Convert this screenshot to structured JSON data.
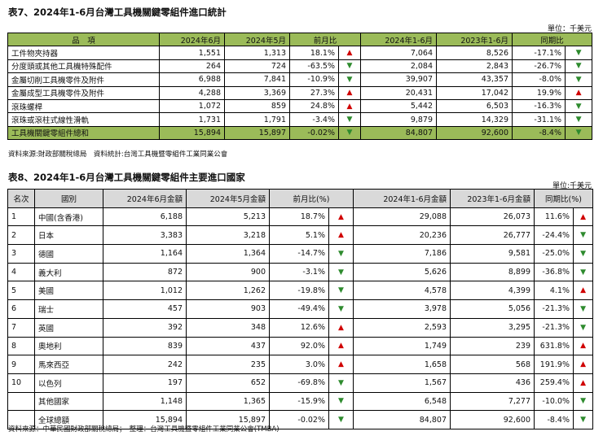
{
  "table7": {
    "caption": "表7、2024年1-6月台灣工具機關鍵零組件進口統計",
    "unit": "單位：千美元",
    "headers": [
      "品　項",
      "2024年6月",
      "2024年5月",
      "前月比",
      "2024年1-6月",
      "2023年1-6月",
      "同期比"
    ],
    "rows": [
      {
        "name": "工件物夾持器",
        "jun": "1,551",
        "may": "1,313",
        "mom": "18.1%",
        "mom_dir": "up",
        "h1_2024": "7,064",
        "h1_2023": "8,526",
        "yoy": "-17.1%",
        "yoy_dir": "down"
      },
      {
        "name": "分度頭或其他工具機特殊配件",
        "jun": "264",
        "may": "724",
        "mom": "-63.5%",
        "mom_dir": "down",
        "h1_2024": "2,084",
        "h1_2023": "2,843",
        "yoy": "-26.7%",
        "yoy_dir": "down"
      },
      {
        "name": "金屬切削工具機零件及附件",
        "jun": "6,988",
        "may": "7,841",
        "mom": "-10.9%",
        "mom_dir": "down",
        "h1_2024": "39,907",
        "h1_2023": "43,357",
        "yoy": "-8.0%",
        "yoy_dir": "down"
      },
      {
        "name": "金屬成型工具機零件及附件",
        "jun": "4,288",
        "may": "3,369",
        "mom": "27.3%",
        "mom_dir": "up",
        "h1_2024": "20,431",
        "h1_2023": "17,042",
        "yoy": "19.9%",
        "yoy_dir": "up"
      },
      {
        "name": "滾珠螺桿",
        "jun": "1,072",
        "may": "859",
        "mom": "24.8%",
        "mom_dir": "up",
        "h1_2024": "5,442",
        "h1_2023": "6,503",
        "yoy": "-16.3%",
        "yoy_dir": "down"
      },
      {
        "name": "滾珠或滾柱式線性滑軌",
        "jun": "1,731",
        "may": "1,791",
        "mom": "-3.4%",
        "mom_dir": "down",
        "h1_2024": "9,879",
        "h1_2023": "14,329",
        "yoy": "-31.1%",
        "yoy_dir": "down"
      }
    ],
    "total": {
      "name": "工具機關鍵零組件總和",
      "jun": "15,894",
      "may": "15,897",
      "mom": "-0.02%",
      "mom_dir": "down",
      "h1_2024": "84,807",
      "h1_2023": "92,600",
      "yoy": "-8.4%",
      "yoy_dir": "down"
    },
    "source": "資料來源:財政部關稅總局　資料統計:台灣工具機暨零組件工業同業公會"
  },
  "table8": {
    "caption": "表8、2024年1-6月台灣工具機關鍵零組件主要進口國家",
    "unit": "單位:千美元",
    "headers": [
      "名次",
      "國別",
      "2024年6月金額",
      "2024年5月金額",
      "前月比(%)",
      "2024年1-6月金額",
      "2023年1-6月金額",
      "同期比(%)"
    ],
    "rows": [
      {
        "rank": "1",
        "country": "中國(含香港)",
        "jun": "6,188",
        "may": "5,213",
        "mom": "18.7%",
        "mom_dir": "up",
        "h1_2024": "29,088",
        "h1_2023": "26,073",
        "yoy": "11.6%",
        "yoy_dir": "up"
      },
      {
        "rank": "2",
        "country": "日本",
        "jun": "3,383",
        "may": "3,218",
        "mom": "5.1%",
        "mom_dir": "up",
        "h1_2024": "20,236",
        "h1_2023": "26,777",
        "yoy": "-24.4%",
        "yoy_dir": "down"
      },
      {
        "rank": "3",
        "country": "德國",
        "jun": "1,164",
        "may": "1,364",
        "mom": "-14.7%",
        "mom_dir": "down",
        "h1_2024": "7,186",
        "h1_2023": "9,581",
        "yoy": "-25.0%",
        "yoy_dir": "down"
      },
      {
        "rank": "4",
        "country": "義大利",
        "jun": "872",
        "may": "900",
        "mom": "-3.1%",
        "mom_dir": "down",
        "h1_2024": "5,626",
        "h1_2023": "8,899",
        "yoy": "-36.8%",
        "yoy_dir": "down"
      },
      {
        "rank": "5",
        "country": "美國",
        "jun": "1,012",
        "may": "1,262",
        "mom": "-19.8%",
        "mom_dir": "down",
        "h1_2024": "4,578",
        "h1_2023": "4,399",
        "yoy": "4.1%",
        "yoy_dir": "up"
      },
      {
        "rank": "6",
        "country": "瑞士",
        "jun": "457",
        "may": "903",
        "mom": "-49.4%",
        "mom_dir": "down",
        "h1_2024": "3,978",
        "h1_2023": "5,056",
        "yoy": "-21.3%",
        "yoy_dir": "down"
      },
      {
        "rank": "7",
        "country": "英國",
        "jun": "392",
        "may": "348",
        "mom": "12.6%",
        "mom_dir": "up",
        "h1_2024": "2,593",
        "h1_2023": "3,295",
        "yoy": "-21.3%",
        "yoy_dir": "down"
      },
      {
        "rank": "8",
        "country": "奧地利",
        "jun": "839",
        "may": "437",
        "mom": "92.0%",
        "mom_dir": "up",
        "h1_2024": "1,749",
        "h1_2023": "239",
        "yoy": "631.8%",
        "yoy_dir": "up"
      },
      {
        "rank": "9",
        "country": "馬來西亞",
        "jun": "242",
        "may": "235",
        "mom": "3.0%",
        "mom_dir": "up",
        "h1_2024": "1,658",
        "h1_2023": "568",
        "yoy": "191.9%",
        "yoy_dir": "up"
      },
      {
        "rank": "10",
        "country": "以色列",
        "jun": "197",
        "may": "652",
        "mom": "-69.8%",
        "mom_dir": "down",
        "h1_2024": "1,567",
        "h1_2023": "436",
        "yoy": "259.4%",
        "yoy_dir": "up"
      },
      {
        "rank": "",
        "country": "其他國家",
        "jun": "1,148",
        "may": "1,365",
        "mom": "-15.9%",
        "mom_dir": "down",
        "h1_2024": "6,548",
        "h1_2023": "7,277",
        "yoy": "-10.0%",
        "yoy_dir": "down"
      },
      {
        "rank": "",
        "country": "全球總額",
        "jun": "15,894",
        "may": "15,897",
        "mom": "-0.02%",
        "mom_dir": "down",
        "h1_2024": "84,807",
        "h1_2023": "92,600",
        "yoy": "-8.4%",
        "yoy_dir": "down"
      }
    ],
    "source": "資料來源：中華民國財政部關稅總局；　整理：台灣工具機暨零組件工業同業公會(TMBA)"
  },
  "arrows": {
    "up": "▲",
    "down": "▼"
  },
  "colors": {
    "up": "#d00000",
    "down": "#2e8b2e",
    "table7_header": "#9bbb59",
    "table8_header": "#d9d9d9"
  }
}
